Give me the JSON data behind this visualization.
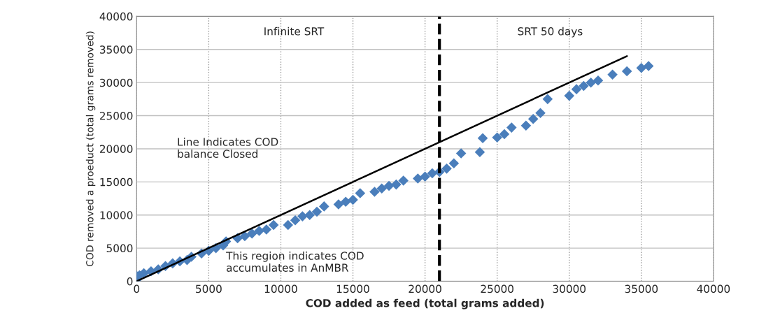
{
  "chart_data": {
    "type": "scatter",
    "xlabel": "COD added as feed (total grams added)",
    "ylabel": "COD removed a proeduct (total grams removed)",
    "xlim": [
      0,
      40000
    ],
    "xticks": [
      0,
      5000,
      10000,
      15000,
      20000,
      25000,
      30000,
      35000,
      40000
    ],
    "ylim": [
      0,
      40000
    ],
    "yticks": [
      0,
      5000,
      10000,
      15000,
      20000,
      25000,
      30000,
      35000,
      40000
    ],
    "grid": true,
    "marker": "diamond",
    "series": [
      {
        "color": "#4a7ebb",
        "x": [
          0,
          0,
          200,
          500,
          1000,
          1500,
          2000,
          2500,
          3000,
          3500,
          3800,
          4500,
          5000,
          5500,
          6000,
          6200,
          7000,
          7500,
          8000,
          8500,
          9000,
          9500,
          10500,
          11000,
          11500,
          12000,
          12500,
          13000,
          14000,
          14500,
          15000,
          15500,
          16500,
          17000,
          17500,
          18000,
          18500,
          19500,
          20000,
          20500,
          21000,
          21500,
          22000,
          22500,
          23800,
          24000,
          25000,
          25500,
          26000,
          27000,
          27500,
          28000,
          28500,
          30000,
          30500,
          31000,
          31500,
          32000,
          33000,
          34000,
          35000,
          35500
        ],
        "values": [
          200,
          800,
          900,
          1200,
          1500,
          1800,
          2300,
          2700,
          3000,
          3200,
          3700,
          4200,
          4600,
          5000,
          5400,
          6000,
          6500,
          6800,
          7200,
          7600,
          7800,
          8500,
          8500,
          9200,
          9800,
          10000,
          10500,
          11300,
          11600,
          12000,
          12300,
          13300,
          13500,
          14000,
          14400,
          14600,
          15200,
          15500,
          15800,
          16300,
          16500,
          17000,
          17800,
          19300,
          19500,
          21600,
          21700,
          22200,
          23200,
          23500,
          24500,
          25400,
          27500,
          28000,
          29000,
          29500,
          30000,
          30300,
          31200,
          31700,
          32200,
          32500
        ]
      },
      {
        "type": "line",
        "color": "#000000",
        "marker": "none",
        "line_style": "solid",
        "x": [
          0,
          34000
        ],
        "values": [
          0,
          34000
        ]
      }
    ],
    "ref_lines": [
      {
        "axis": "x",
        "value": 21000,
        "color": "#000000",
        "line_style": "dashed"
      }
    ],
    "annotations": [
      "Infinite SRT",
      "SRT 50 days",
      "Line Indicates COD\nbalance Closed",
      "This region indicates COD\naccumulates in AnMBR"
    ]
  }
}
